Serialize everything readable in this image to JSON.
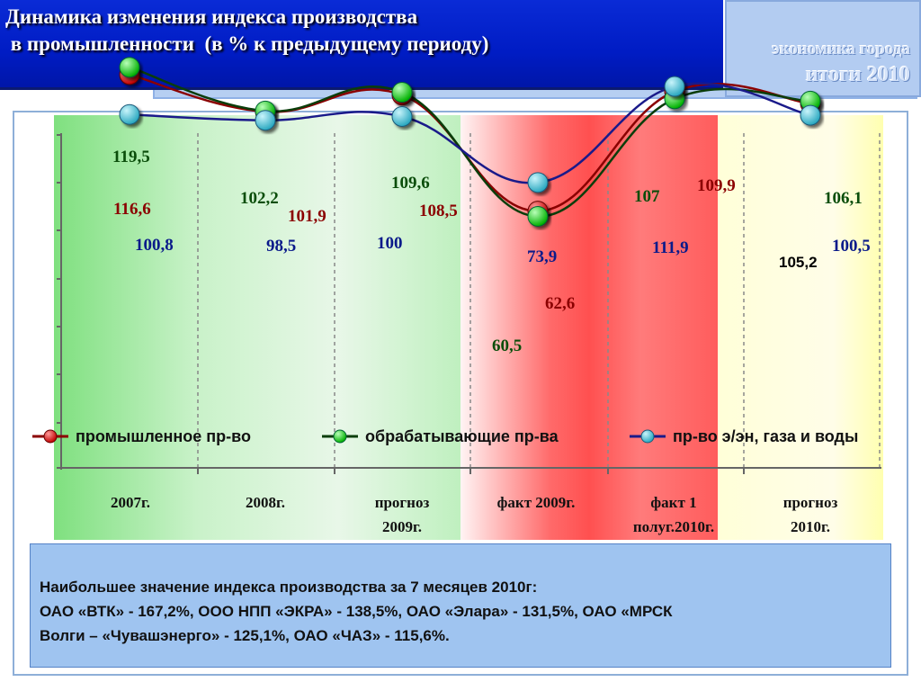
{
  "header": {
    "title_line1": "Динамика изменения индекса производства",
    "title_line2": " в промышленности  (в % к предыдущему периоду)",
    "brand_line1": "экономика города",
    "brand_line2": "итоги  2010"
  },
  "chart_data": {
    "type": "line",
    "categories": [
      "2007г.",
      "2008г.",
      "прогноз\n2009г.",
      "факт 2009г.",
      "факт 1\nполуг.2010г.",
      "прогноз\n2010г."
    ],
    "series": [
      {
        "name": "промышленное пр-во",
        "color": "#c00000",
        "values": [
          116.6,
          101.9,
          108.5,
          62.6,
          109.9,
          105.2
        ]
      },
      {
        "name": "обрабатывающие пр-ва",
        "color": "#00cc00",
        "values": [
          119.5,
          102.2,
          109.6,
          60.5,
          107,
          106.1
        ]
      },
      {
        "name": "пр-во э/эн, газа и воды",
        "color": "#33b6cc",
        "values": [
          100.8,
          98.5,
          100,
          73.9,
          111.9,
          100.5
        ]
      }
    ],
    "labels": [
      {
        "text": "119,5",
        "color": "#0a4d0a"
      },
      {
        "text": "116,6",
        "color": "#8b0000"
      },
      {
        "text": "100,8",
        "color": "#0a1a8a"
      },
      {
        "text": "102,2",
        "color": "#0a4d0a"
      },
      {
        "text": "101,9",
        "color": "#8b0000"
      },
      {
        "text": "98,5",
        "color": "#0a1a8a"
      },
      {
        "text": "109,6",
        "color": "#0a4d0a"
      },
      {
        "text": "108,5",
        "color": "#8b0000"
      },
      {
        "text": "100",
        "color": "#0a1a8a"
      },
      {
        "text": "73,9",
        "color": "#0a1a8a"
      },
      {
        "text": "62,6",
        "color": "#8b0000"
      },
      {
        "text": "60,5",
        "color": "#0a4d0a"
      },
      {
        "text": "107",
        "color": "#0a4d0a"
      },
      {
        "text": "109,9",
        "color": "#8b0000"
      },
      {
        "text": "111,9",
        "color": "#0a1a8a"
      },
      {
        "text": "106,1",
        "color": "#0a4d0a"
      },
      {
        "text": "100,5",
        "color": "#0a1a8a"
      },
      {
        "text": "105,2",
        "color": "#000000"
      }
    ],
    "legend": "bottom",
    "grid": true
  },
  "note": {
    "line1": "Наибольшее значение индекса производства за 7 месяцев 2010г:",
    "line2": "ОАО «ВТК» - 167,2%, ООО НПП «ЭКРА» - 138,5%, ОАО «Элара» - 131,5%, ОАО «МРСК",
    "line3": "Волги – «Чувашэнерго» - 125,1%, ОАО «ЧАЗ» - 115,6%."
  }
}
